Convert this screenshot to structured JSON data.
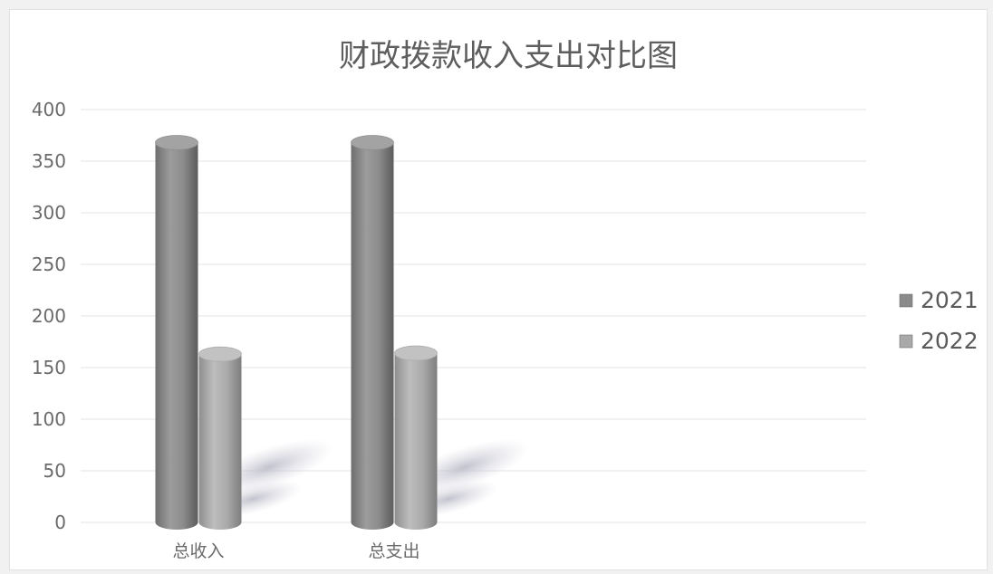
{
  "chart_data": {
    "type": "bar",
    "style": "3d-cylinder",
    "title": "财政拨款收入支出对比图",
    "xlabel": "",
    "ylabel": "",
    "categories": [
      "总收入",
      "总支出"
    ],
    "series": [
      {
        "name": "2021",
        "values": [
          368,
          368
        ],
        "color": "#8a8a8a"
      },
      {
        "name": "2022",
        "values": [
          163,
          164
        ],
        "color": "#a9a9a9"
      }
    ],
    "ylim": [
      0,
      400
    ],
    "yticks": [
      0,
      50,
      100,
      150,
      200,
      250,
      300,
      350,
      400
    ],
    "grid": true,
    "legend_position": "right"
  }
}
